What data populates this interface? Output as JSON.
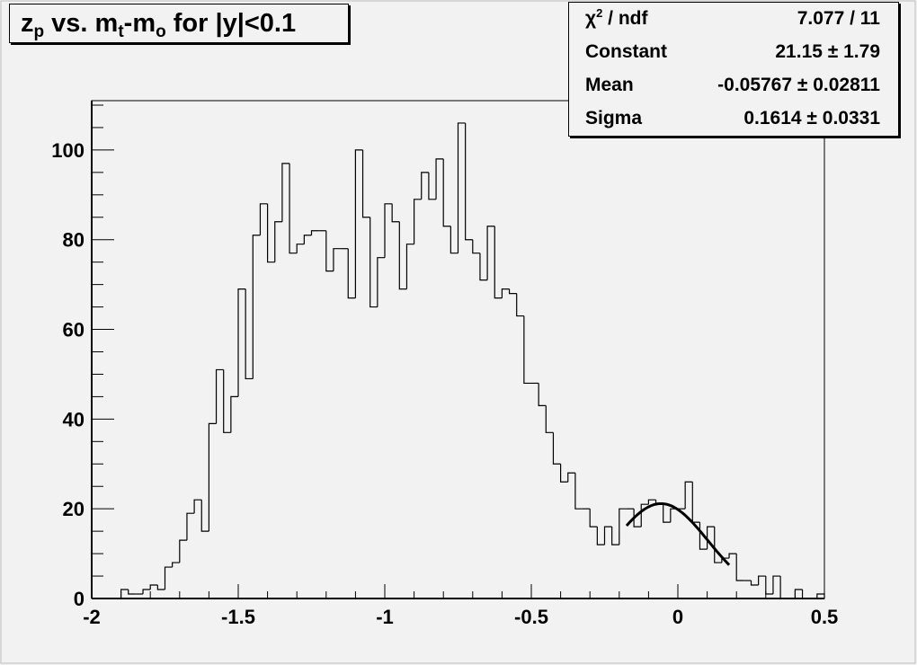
{
  "title": {
    "p1": "z",
    "p1_sub": "p",
    "p2": " vs. m",
    "p2_sub": "t",
    "p3": "-m",
    "p3_sub": "o",
    "p4": " for |y|<0.1"
  },
  "stats": [
    {
      "label": "χ",
      "label_sup": "2",
      "label_rest": " / ndf",
      "value": "7.077 / 11"
    },
    {
      "label": "Constant",
      "value": "21.15 ± 1.79"
    },
    {
      "label": "Mean",
      "value": "-0.05767 ± 0.02811"
    },
    {
      "label": "Sigma",
      "value": "0.1614 ± 0.0331"
    }
  ],
  "chart_data": {
    "type": "histogram",
    "title": "z_p vs. m_t-m_o for |y|<0.1",
    "xlabel": "",
    "ylabel": "",
    "xlim": [
      -2,
      0.5
    ],
    "ylim": [
      0,
      111
    ],
    "bin_width": 0.025,
    "x_ticks": [
      "-2",
      "-1.5",
      "-1",
      "-0.5",
      "0",
      "0.5"
    ],
    "x_tick_values": [
      -2,
      -1.5,
      -1,
      -0.5,
      0,
      0.5
    ],
    "y_ticks": [
      "0",
      "20",
      "40",
      "60",
      "80",
      "100"
    ],
    "y_tick_values": [
      0,
      20,
      40,
      60,
      80,
      100
    ],
    "grid": false,
    "line_color": "#000000",
    "background": "#f2f2f2",
    "values": [
      0,
      0,
      0,
      0,
      2,
      1,
      1,
      2,
      3,
      2,
      7,
      8,
      13,
      19,
      22,
      15,
      39,
      51,
      37,
      45,
      69,
      49,
      81,
      88,
      75,
      84,
      97,
      77,
      79,
      81,
      82,
      82,
      73,
      78,
      78,
      67,
      100,
      85,
      65,
      76,
      88,
      84,
      69,
      79,
      89,
      95,
      89,
      98,
      83,
      77,
      106,
      80,
      77,
      71,
      83,
      67,
      69,
      68,
      63,
      48,
      48,
      43,
      37,
      30,
      26,
      28,
      20,
      20,
      16,
      12,
      16,
      12,
      20,
      20,
      16,
      21,
      22,
      21,
      17,
      20,
      20,
      26,
      17,
      11,
      16,
      8,
      9,
      10,
      4,
      4,
      3,
      5,
      1,
      5,
      0,
      0,
      2,
      0,
      0,
      1
    ],
    "fit": {
      "function": "gaus",
      "constant": 21.15,
      "mean": -0.05767,
      "sigma": 0.1614,
      "range": [
        -0.175,
        0.175
      ]
    }
  }
}
